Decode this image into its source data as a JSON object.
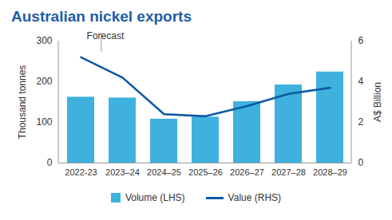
{
  "chart_data": {
    "type": "bar",
    "title": "Australian nickel exports",
    "categories": [
      "2022-23",
      "2023–24",
      "2024–25",
      "2025–26",
      "2026–27",
      "2027–28",
      "2028–29"
    ],
    "series": [
      {
        "name": "Volume (LHS)",
        "type": "bar",
        "color": "#3eb1de",
        "values": [
          162,
          160,
          108,
          113,
          151,
          192,
          224
        ]
      },
      {
        "name": "Value (RHS)",
        "type": "line",
        "color": "#0b5aa5",
        "axis": "y2",
        "values": [
          5.2,
          4.2,
          2.4,
          2.3,
          2.8,
          3.4,
          3.7
        ]
      }
    ],
    "ylabel": "Thousand tonnes",
    "y2label": "A$ Billion",
    "ylim": [
      0,
      300
    ],
    "yticks": [
      0,
      100,
      200,
      300
    ],
    "y2lim": [
      0,
      6
    ],
    "y2ticks": [
      0,
      2,
      4,
      6
    ],
    "annotations": [
      {
        "text": "Forecast",
        "x": "2023–24"
      }
    ],
    "legend": "bottom",
    "grid": false
  }
}
